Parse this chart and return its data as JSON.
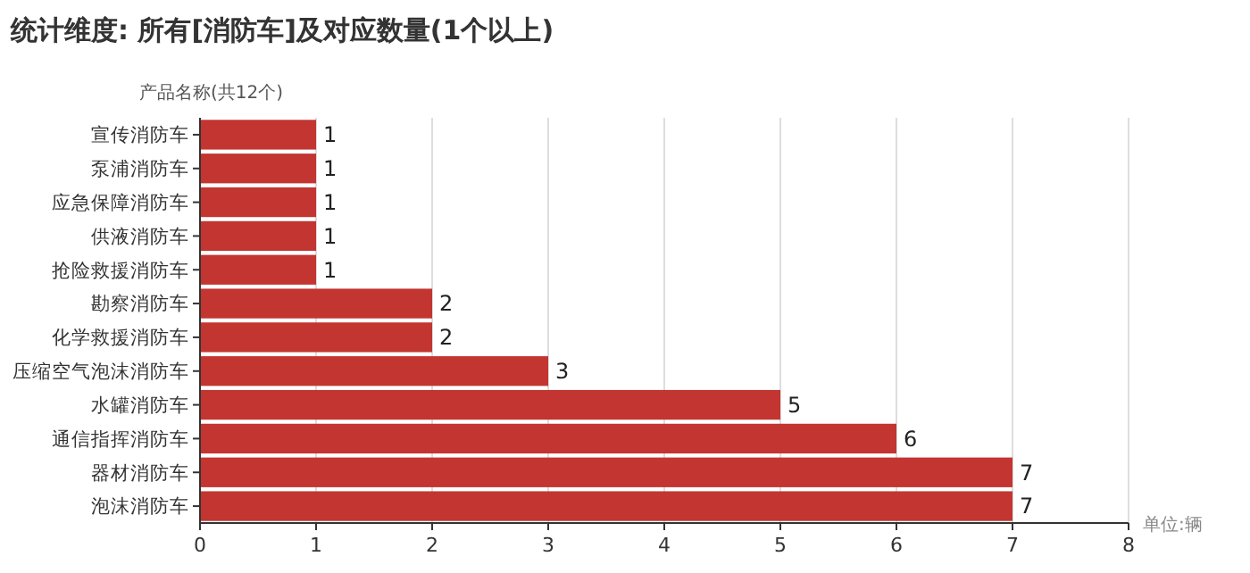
{
  "chart_data": {
    "type": "bar",
    "orientation": "horizontal",
    "title": "统计维度: 所有[消防车]及对应数量(1个以上)",
    "ylabel": "产品名称(共12个)",
    "xlabel": "单位:辆",
    "categories": [
      "宣传消防车",
      "泵浦消防车",
      "应急保障消防车",
      "供液消防车",
      "抢险救援消防车",
      "勘察消防车",
      "化学救援消防车",
      "压缩空气泡沫消防车",
      "水罐消防车",
      "通信指挥消防车",
      "器材消防车",
      "泡沫消防车"
    ],
    "values": [
      1,
      1,
      1,
      1,
      1,
      2,
      2,
      3,
      5,
      6,
      7,
      7
    ],
    "color": "#c23531",
    "xlim": [
      0,
      8
    ],
    "xticks": [
      0,
      1,
      2,
      3,
      4,
      5,
      6,
      7,
      8
    ],
    "grid": "x",
    "data_labels": true
  }
}
